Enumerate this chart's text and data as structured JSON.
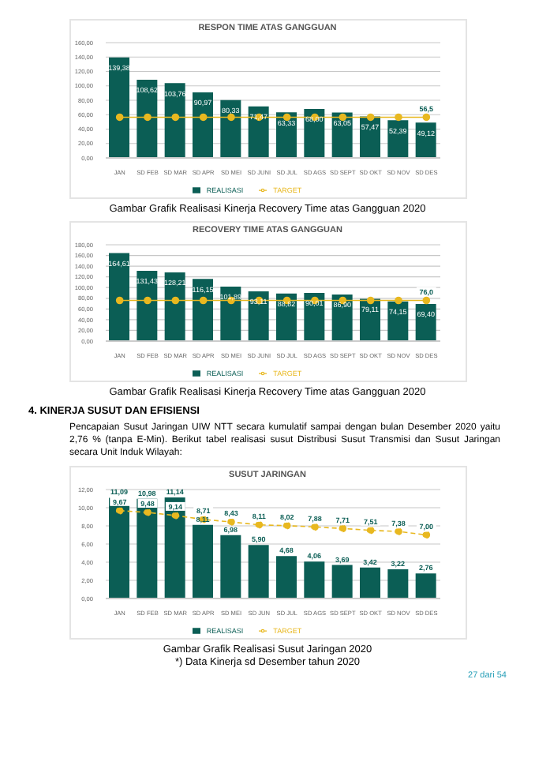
{
  "chart_data": [
    {
      "type": "bar",
      "title": "RESPON TIME ATAS GANGGUAN",
      "categories": [
        "JAN",
        "SD FEB",
        "SD MAR",
        "SD APR",
        "SD MEI",
        "SD JUNI",
        "SD JUL",
        "SD AGS",
        "SD SEPT",
        "SD OKT",
        "SD NOV",
        "SD DES"
      ],
      "series": [
        {
          "name": "REALISASI",
          "color": "#0b5e55",
          "values": [
            139.38,
            108.62,
            103.76,
            90.97,
            80.33,
            71.47,
            63.33,
            68.0,
            63.05,
            57.47,
            52.39,
            49.12
          ],
          "value_labels": [
            "139,38",
            "108,62",
            "103,76",
            "90,97",
            "80,33",
            "71,47",
            "63,33",
            "68,00",
            "63,05",
            "57,47",
            "52,39",
            "49,12"
          ]
        },
        {
          "name": "TARGET",
          "type": "line",
          "color": "#e8b820",
          "values": [
            56.5,
            56.5,
            56.5,
            56.5,
            56.5,
            56.5,
            56.5,
            56.5,
            56.5,
            56.5,
            56.5,
            56.5
          ],
          "value_labels": [
            null,
            null,
            null,
            null,
            null,
            null,
            null,
            null,
            null,
            null,
            null,
            "56,5"
          ]
        }
      ],
      "ylim": [
        0,
        160
      ],
      "yticks": [
        {
          "value": 0,
          "label": "0,00"
        },
        {
          "value": 20,
          "label": "20,00"
        },
        {
          "value": 40,
          "label": "40,00"
        },
        {
          "value": 60,
          "label": "60,00"
        },
        {
          "value": 80,
          "label": "80,00"
        },
        {
          "value": 100,
          "label": "100,00"
        },
        {
          "value": 120,
          "label": "120,00"
        },
        {
          "value": 140,
          "label": "140,00"
        },
        {
          "value": 160,
          "label": "160,00"
        }
      ],
      "grid": "y",
      "legend": "bottom",
      "marker": "circle",
      "annotations": [
        "Gambar Grafik Realisasi Kinerja Recovery Time atas Gangguan 2020"
      ]
    },
    {
      "type": "bar",
      "title": "RECOVERY TIME ATAS GANGGUAN",
      "categories": [
        "JAN",
        "SD FEB",
        "SD MAR",
        "SD APR",
        "SD MEI",
        "SD JUNI",
        "SD JUL",
        "SD AGS",
        "SD SEPT",
        "SD OKT",
        "SD NOV",
        "SD DES"
      ],
      "series": [
        {
          "name": "REALISASI",
          "color": "#0b5e55",
          "values": [
            164.61,
            131.43,
            128.21,
            116.15,
            101.89,
            93.11,
            88.82,
            90.01,
            86.9,
            79.11,
            74.15,
            69.4
          ],
          "value_labels": [
            "164,61",
            "131,43",
            "128,21",
            "116,15",
            "101,89",
            "93,11",
            "88,82",
            "90,01",
            "86,90",
            "79,11",
            "74,15",
            "69,40"
          ]
        },
        {
          "name": "TARGET",
          "type": "line",
          "color": "#e8b820",
          "values": [
            76.0,
            76.0,
            76.0,
            76.0,
            76.0,
            76.0,
            76.0,
            76.0,
            76.0,
            76.0,
            76.0,
            76.0
          ],
          "value_labels": [
            null,
            null,
            null,
            null,
            null,
            null,
            null,
            null,
            null,
            null,
            null,
            "76,0"
          ]
        }
      ],
      "ylim": [
        0,
        180
      ],
      "yticks": [
        {
          "value": 0,
          "label": "0,00"
        },
        {
          "value": 20,
          "label": "20,00"
        },
        {
          "value": 40,
          "label": "40,00"
        },
        {
          "value": 60,
          "label": "60,00"
        },
        {
          "value": 80,
          "label": "80,00"
        },
        {
          "value": 100,
          "label": "100,00"
        },
        {
          "value": 120,
          "label": "120,00"
        },
        {
          "value": 140,
          "label": "140,00"
        },
        {
          "value": 160,
          "label": "160,00"
        },
        {
          "value": 180,
          "label": "180,00"
        }
      ],
      "grid": "y",
      "legend": "bottom",
      "marker": "circle",
      "annotations": [
        "Gambar Grafik Realisasi Kinerja Recovery Time atas Gangguan 2020",
        "4.   KINERJA SUSUT DAN EFISIENSI",
        "Pencapaian Susut Jaringan UIW NTT secara kumulatif sampai dengan bulan Desember 2020 yaitu 2,76 % (tanpa E-Min). Berikut tabel realisasi susut Distribusi Susut Transmisi dan Susut Jaringan secara Unit Induk Wilayah:"
      ]
    },
    {
      "type": "bar",
      "title": "SUSUT JARINGAN",
      "categories": [
        "JAN",
        "SD FEB",
        "SD MAR",
        "SD APR",
        "SD MEI",
        "SD JUN",
        "SD JUL",
        "SD AGS",
        "SD SEPT",
        "SD OKT",
        "SD NOV",
        "SD DES"
      ],
      "series": [
        {
          "name": "REALISASI",
          "color": "#0b5e55",
          "values": [
            11.09,
            10.98,
            11.14,
            8.11,
            6.98,
            5.9,
            4.68,
            4.06,
            3.69,
            3.42,
            3.22,
            2.76
          ],
          "value_labels": [
            "11,09",
            "10,98",
            "11,14",
            "8,11",
            "6,98",
            "5,90",
            "4,68",
            "4,06",
            "3,69",
            "3,42",
            "3,22",
            "2,76"
          ]
        },
        {
          "name": "TARGET",
          "type": "line",
          "color": "#e8b820",
          "line_style": "dashed",
          "values": [
            9.67,
            9.48,
            9.14,
            8.71,
            8.43,
            8.11,
            8.02,
            7.88,
            7.71,
            7.51,
            7.38,
            7.0
          ],
          "value_labels": [
            "9,67",
            "9,48",
            "9,14",
            "8,71",
            "8,43",
            "8,11",
            "8,02",
            "7,88",
            "7,71",
            "7,51",
            "7,38",
            "7,00"
          ]
        }
      ],
      "ylim": [
        0,
        12
      ],
      "yticks": [
        {
          "value": 0,
          "label": "0,00"
        },
        {
          "value": 2,
          "label": "2,00"
        },
        {
          "value": 4,
          "label": "4,00"
        },
        {
          "value": 6,
          "label": "6,00"
        },
        {
          "value": 8,
          "label": "8,00"
        },
        {
          "value": 10,
          "label": "10,00"
        },
        {
          "value": 12,
          "label": "12,00"
        }
      ],
      "grid": "y",
      "legend": "bottom",
      "marker": "circle",
      "annotations": [
        "Gambar Grafik Realisasi Susut Jaringan 2020",
        "*) Data Kinerja sd Desember tahun 2020",
        "27 dari 54"
      ]
    }
  ]
}
